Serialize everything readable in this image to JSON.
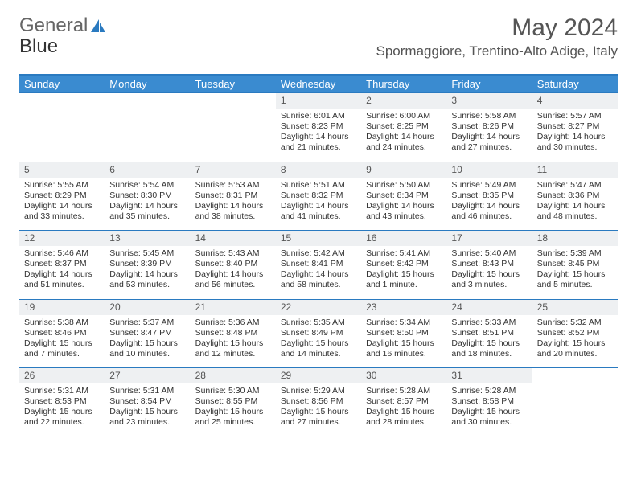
{
  "brand": {
    "part1": "Gener",
    "part2": "al",
    "part3": "Blue"
  },
  "title": "May 2024",
  "location": "Spormaggiore, Trentino-Alto Adige, Italy",
  "colors": {
    "header_bg": "#3a8bd0",
    "header_text": "#ffffff",
    "accent_line": "#2a7ac0",
    "daynum_bg": "#eef0f2",
    "body_text": "#333333",
    "title_text": "#555555"
  },
  "weekday_labels": [
    "Sunday",
    "Monday",
    "Tuesday",
    "Wednesday",
    "Thursday",
    "Friday",
    "Saturday"
  ],
  "weeks": [
    [
      null,
      null,
      null,
      {
        "n": "1",
        "sunrise": "6:01 AM",
        "sunset": "8:23 PM",
        "daylight": "14 hours and 21 minutes."
      },
      {
        "n": "2",
        "sunrise": "6:00 AM",
        "sunset": "8:25 PM",
        "daylight": "14 hours and 24 minutes."
      },
      {
        "n": "3",
        "sunrise": "5:58 AM",
        "sunset": "8:26 PM",
        "daylight": "14 hours and 27 minutes."
      },
      {
        "n": "4",
        "sunrise": "5:57 AM",
        "sunset": "8:27 PM",
        "daylight": "14 hours and 30 minutes."
      }
    ],
    [
      {
        "n": "5",
        "sunrise": "5:55 AM",
        "sunset": "8:29 PM",
        "daylight": "14 hours and 33 minutes."
      },
      {
        "n": "6",
        "sunrise": "5:54 AM",
        "sunset": "8:30 PM",
        "daylight": "14 hours and 35 minutes."
      },
      {
        "n": "7",
        "sunrise": "5:53 AM",
        "sunset": "8:31 PM",
        "daylight": "14 hours and 38 minutes."
      },
      {
        "n": "8",
        "sunrise": "5:51 AM",
        "sunset": "8:32 PM",
        "daylight": "14 hours and 41 minutes."
      },
      {
        "n": "9",
        "sunrise": "5:50 AM",
        "sunset": "8:34 PM",
        "daylight": "14 hours and 43 minutes."
      },
      {
        "n": "10",
        "sunrise": "5:49 AM",
        "sunset": "8:35 PM",
        "daylight": "14 hours and 46 minutes."
      },
      {
        "n": "11",
        "sunrise": "5:47 AM",
        "sunset": "8:36 PM",
        "daylight": "14 hours and 48 minutes."
      }
    ],
    [
      {
        "n": "12",
        "sunrise": "5:46 AM",
        "sunset": "8:37 PM",
        "daylight": "14 hours and 51 minutes."
      },
      {
        "n": "13",
        "sunrise": "5:45 AM",
        "sunset": "8:39 PM",
        "daylight": "14 hours and 53 minutes."
      },
      {
        "n": "14",
        "sunrise": "5:43 AM",
        "sunset": "8:40 PM",
        "daylight": "14 hours and 56 minutes."
      },
      {
        "n": "15",
        "sunrise": "5:42 AM",
        "sunset": "8:41 PM",
        "daylight": "14 hours and 58 minutes."
      },
      {
        "n": "16",
        "sunrise": "5:41 AM",
        "sunset": "8:42 PM",
        "daylight": "15 hours and 1 minute."
      },
      {
        "n": "17",
        "sunrise": "5:40 AM",
        "sunset": "8:43 PM",
        "daylight": "15 hours and 3 minutes."
      },
      {
        "n": "18",
        "sunrise": "5:39 AM",
        "sunset": "8:45 PM",
        "daylight": "15 hours and 5 minutes."
      }
    ],
    [
      {
        "n": "19",
        "sunrise": "5:38 AM",
        "sunset": "8:46 PM",
        "daylight": "15 hours and 7 minutes."
      },
      {
        "n": "20",
        "sunrise": "5:37 AM",
        "sunset": "8:47 PM",
        "daylight": "15 hours and 10 minutes."
      },
      {
        "n": "21",
        "sunrise": "5:36 AM",
        "sunset": "8:48 PM",
        "daylight": "15 hours and 12 minutes."
      },
      {
        "n": "22",
        "sunrise": "5:35 AM",
        "sunset": "8:49 PM",
        "daylight": "15 hours and 14 minutes."
      },
      {
        "n": "23",
        "sunrise": "5:34 AM",
        "sunset": "8:50 PM",
        "daylight": "15 hours and 16 minutes."
      },
      {
        "n": "24",
        "sunrise": "5:33 AM",
        "sunset": "8:51 PM",
        "daylight": "15 hours and 18 minutes."
      },
      {
        "n": "25",
        "sunrise": "5:32 AM",
        "sunset": "8:52 PM",
        "daylight": "15 hours and 20 minutes."
      }
    ],
    [
      {
        "n": "26",
        "sunrise": "5:31 AM",
        "sunset": "8:53 PM",
        "daylight": "15 hours and 22 minutes."
      },
      {
        "n": "27",
        "sunrise": "5:31 AM",
        "sunset": "8:54 PM",
        "daylight": "15 hours and 23 minutes."
      },
      {
        "n": "28",
        "sunrise": "5:30 AM",
        "sunset": "8:55 PM",
        "daylight": "15 hours and 25 minutes."
      },
      {
        "n": "29",
        "sunrise": "5:29 AM",
        "sunset": "8:56 PM",
        "daylight": "15 hours and 27 minutes."
      },
      {
        "n": "30",
        "sunrise": "5:28 AM",
        "sunset": "8:57 PM",
        "daylight": "15 hours and 28 minutes."
      },
      {
        "n": "31",
        "sunrise": "5:28 AM",
        "sunset": "8:58 PM",
        "daylight": "15 hours and 30 minutes."
      },
      null
    ]
  ],
  "labels": {
    "sunrise": "Sunrise: ",
    "sunset": "Sunset: ",
    "daylight": "Daylight: "
  }
}
